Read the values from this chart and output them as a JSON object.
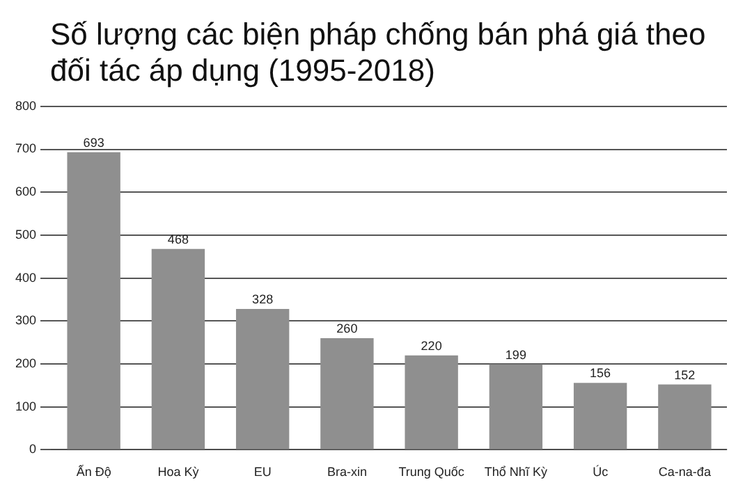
{
  "chart_data": {
    "type": "bar",
    "title": "Số lượng các biện pháp chống bán phá giá theo đối tác áp dụng (1995-2018)",
    "categories": [
      "Ấn Độ",
      "Hoa Kỳ",
      "EU",
      "Bra-xin",
      "Trung Quốc",
      "Thổ Nhĩ Kỳ",
      "Úc",
      "Ca-na-đa"
    ],
    "values": [
      693,
      468,
      328,
      260,
      220,
      199,
      156,
      152
    ],
    "color": "#8f8f8f",
    "ylim": [
      0,
      800
    ],
    "yticks": [
      0,
      100,
      200,
      300,
      400,
      500,
      600,
      700,
      800
    ],
    "grid": "y",
    "data_labels": true
  }
}
